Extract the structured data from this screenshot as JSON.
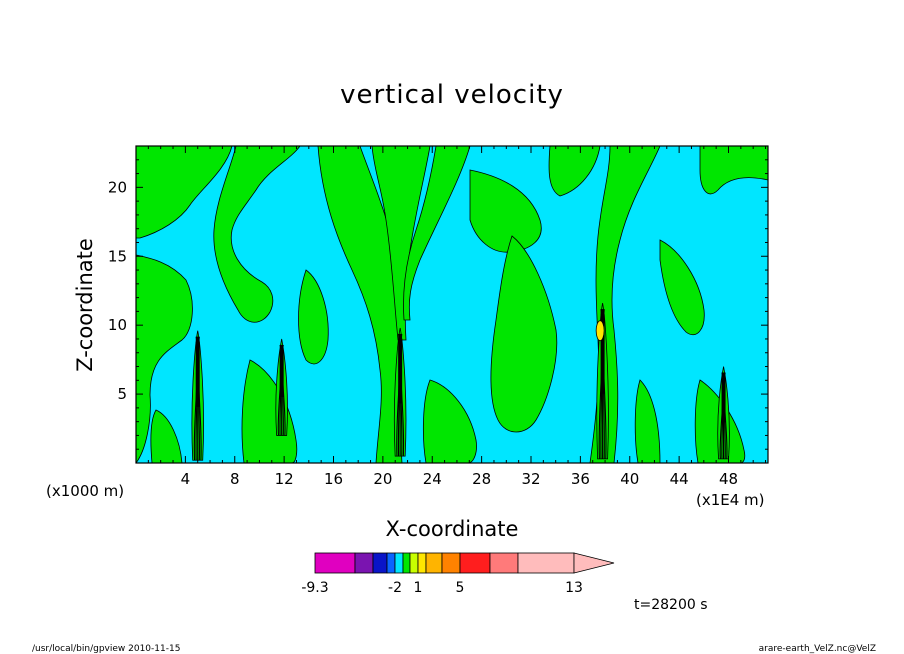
{
  "chart_data": {
    "type": "heatmap",
    "title": "vertical velocity",
    "xlabel": "X-coordinate",
    "ylabel": "Z-coordinate",
    "x_unit_left": "(x1000 m)",
    "x_unit_right": "(x1E4 m)",
    "x_ticks": [
      "4",
      "8",
      "12",
      "16",
      "20",
      "24",
      "28",
      "32",
      "36",
      "40",
      "44",
      "48"
    ],
    "x_tick_values": [
      4,
      8,
      12,
      16,
      20,
      24,
      28,
      32,
      36,
      40,
      44,
      48
    ],
    "y_ticks": [
      "5",
      "10",
      "15",
      "20"
    ],
    "y_tick_values": [
      5,
      10,
      15,
      20
    ],
    "xlim": [
      0,
      51.2
    ],
    "ylim": [
      0,
      23
    ],
    "colorbar": {
      "labels": [
        "-9.3",
        "-2",
        "1",
        "5",
        "13"
      ],
      "levels": [
        -9.3,
        -7,
        -5,
        -3,
        -2,
        -1,
        0,
        1,
        2,
        3,
        5,
        7,
        10,
        13,
        18
      ],
      "colors": [
        "#e000c0",
        "#7a14b0",
        "#0a14c8",
        "#0a64ff",
        "#00e6ff",
        "#00e600",
        "#c8ff00",
        "#ffe600",
        "#ffb400",
        "#ff8200",
        "#ff1e1e",
        "#ff7a7a",
        "#ffbcbc"
      ]
    },
    "time_label": "t=28200 s",
    "background_color": "#00e6ff",
    "updraft_color": "#00e600",
    "core_color": "#000000"
  },
  "footer": {
    "left": "/usr/local/bin/gpview  2010-11-15",
    "right": "arare-earth_VelZ.nc@VelZ"
  }
}
